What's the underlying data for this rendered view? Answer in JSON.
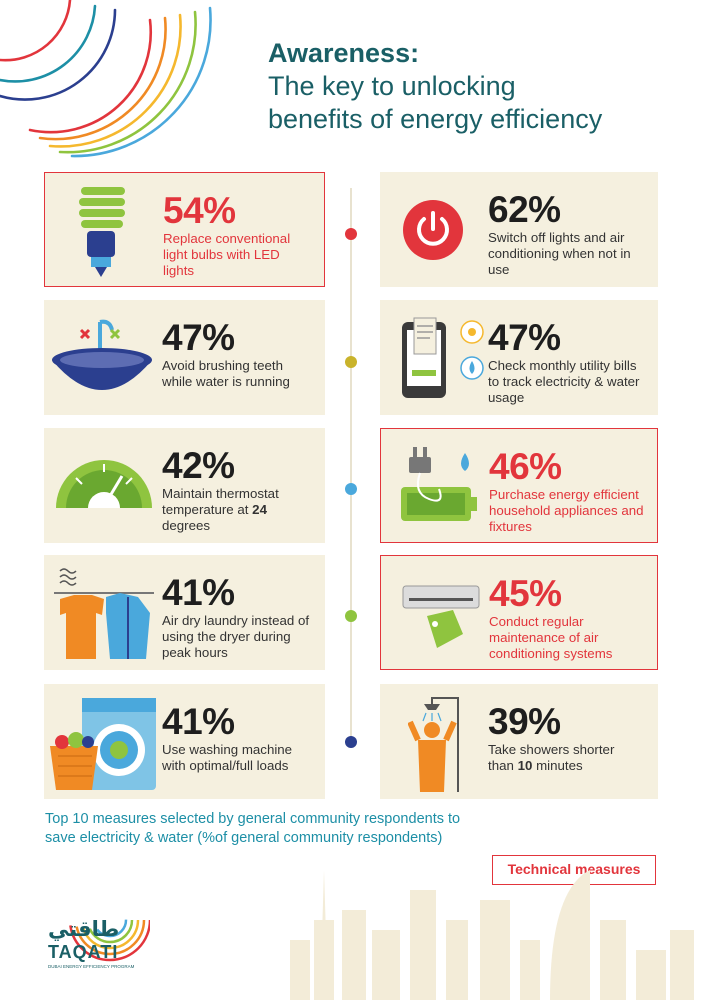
{
  "title": {
    "line1": "Awareness:",
    "line2": "The key to unlocking",
    "line3": "benefits of energy efficiency"
  },
  "measures": [
    {
      "percent": "54%",
      "text": "Replace conventional light bulbs with LED lights",
      "technical": true,
      "icon": "led-bulb-icon"
    },
    {
      "percent": "62%",
      "text": "Switch off lights and air conditioning when not in use",
      "technical": false,
      "icon": "power-button-icon"
    },
    {
      "percent": "47%",
      "text": "Avoid brushing teeth while water is running",
      "technical": false,
      "icon": "sink-icon"
    },
    {
      "percent": "47%",
      "text": "Check monthly utility bills to track electricity & water usage",
      "technical": false,
      "icon": "phone-bill-icon"
    },
    {
      "percent": "42%",
      "text_before": "Maintain thermostat temperature at ",
      "text_bold": "24",
      "text_after": " degrees",
      "technical": false,
      "icon": "thermostat-gauge-icon"
    },
    {
      "percent": "46%",
      "text": "Purchase energy efficient household appliances and fixtures",
      "technical": true,
      "icon": "plug-battery-icon"
    },
    {
      "percent": "41%",
      "text": "Air dry laundry instead of using the dryer during peak hours",
      "technical": false,
      "icon": "laundry-clothes-icon"
    },
    {
      "percent": "45%",
      "text": "Conduct regular maintenance of air conditioning systems",
      "technical": true,
      "icon": "air-conditioner-icon"
    },
    {
      "percent": "41%",
      "text": "Use washing machine with optimal/full loads",
      "technical": false,
      "icon": "washing-machine-icon"
    },
    {
      "percent": "39%",
      "text_before": "Take showers shorter than ",
      "text_bold": "10",
      "text_after": " minutes",
      "technical": false,
      "icon": "shower-icon"
    }
  ],
  "footnote": {
    "line1": "Top 10 measures selected by general community respondents to",
    "line2": "save electricity & water (%of general community respondents)"
  },
  "legend": "Technical measures",
  "logo": {
    "arabic": "طاقتي",
    "latin": "TAQATI",
    "tagline": "DUBAI ENERGY EFFICIENCY PROGRAM"
  },
  "colors": {
    "title": "#1a5f66",
    "red": "#e2353c",
    "card": "#f5f0df",
    "footnote": "#1d8fa6",
    "dots": [
      "#e2353c",
      "#c9b32b",
      "#4aa8dc",
      "#8fc43f",
      "#2b3f8f"
    ]
  }
}
